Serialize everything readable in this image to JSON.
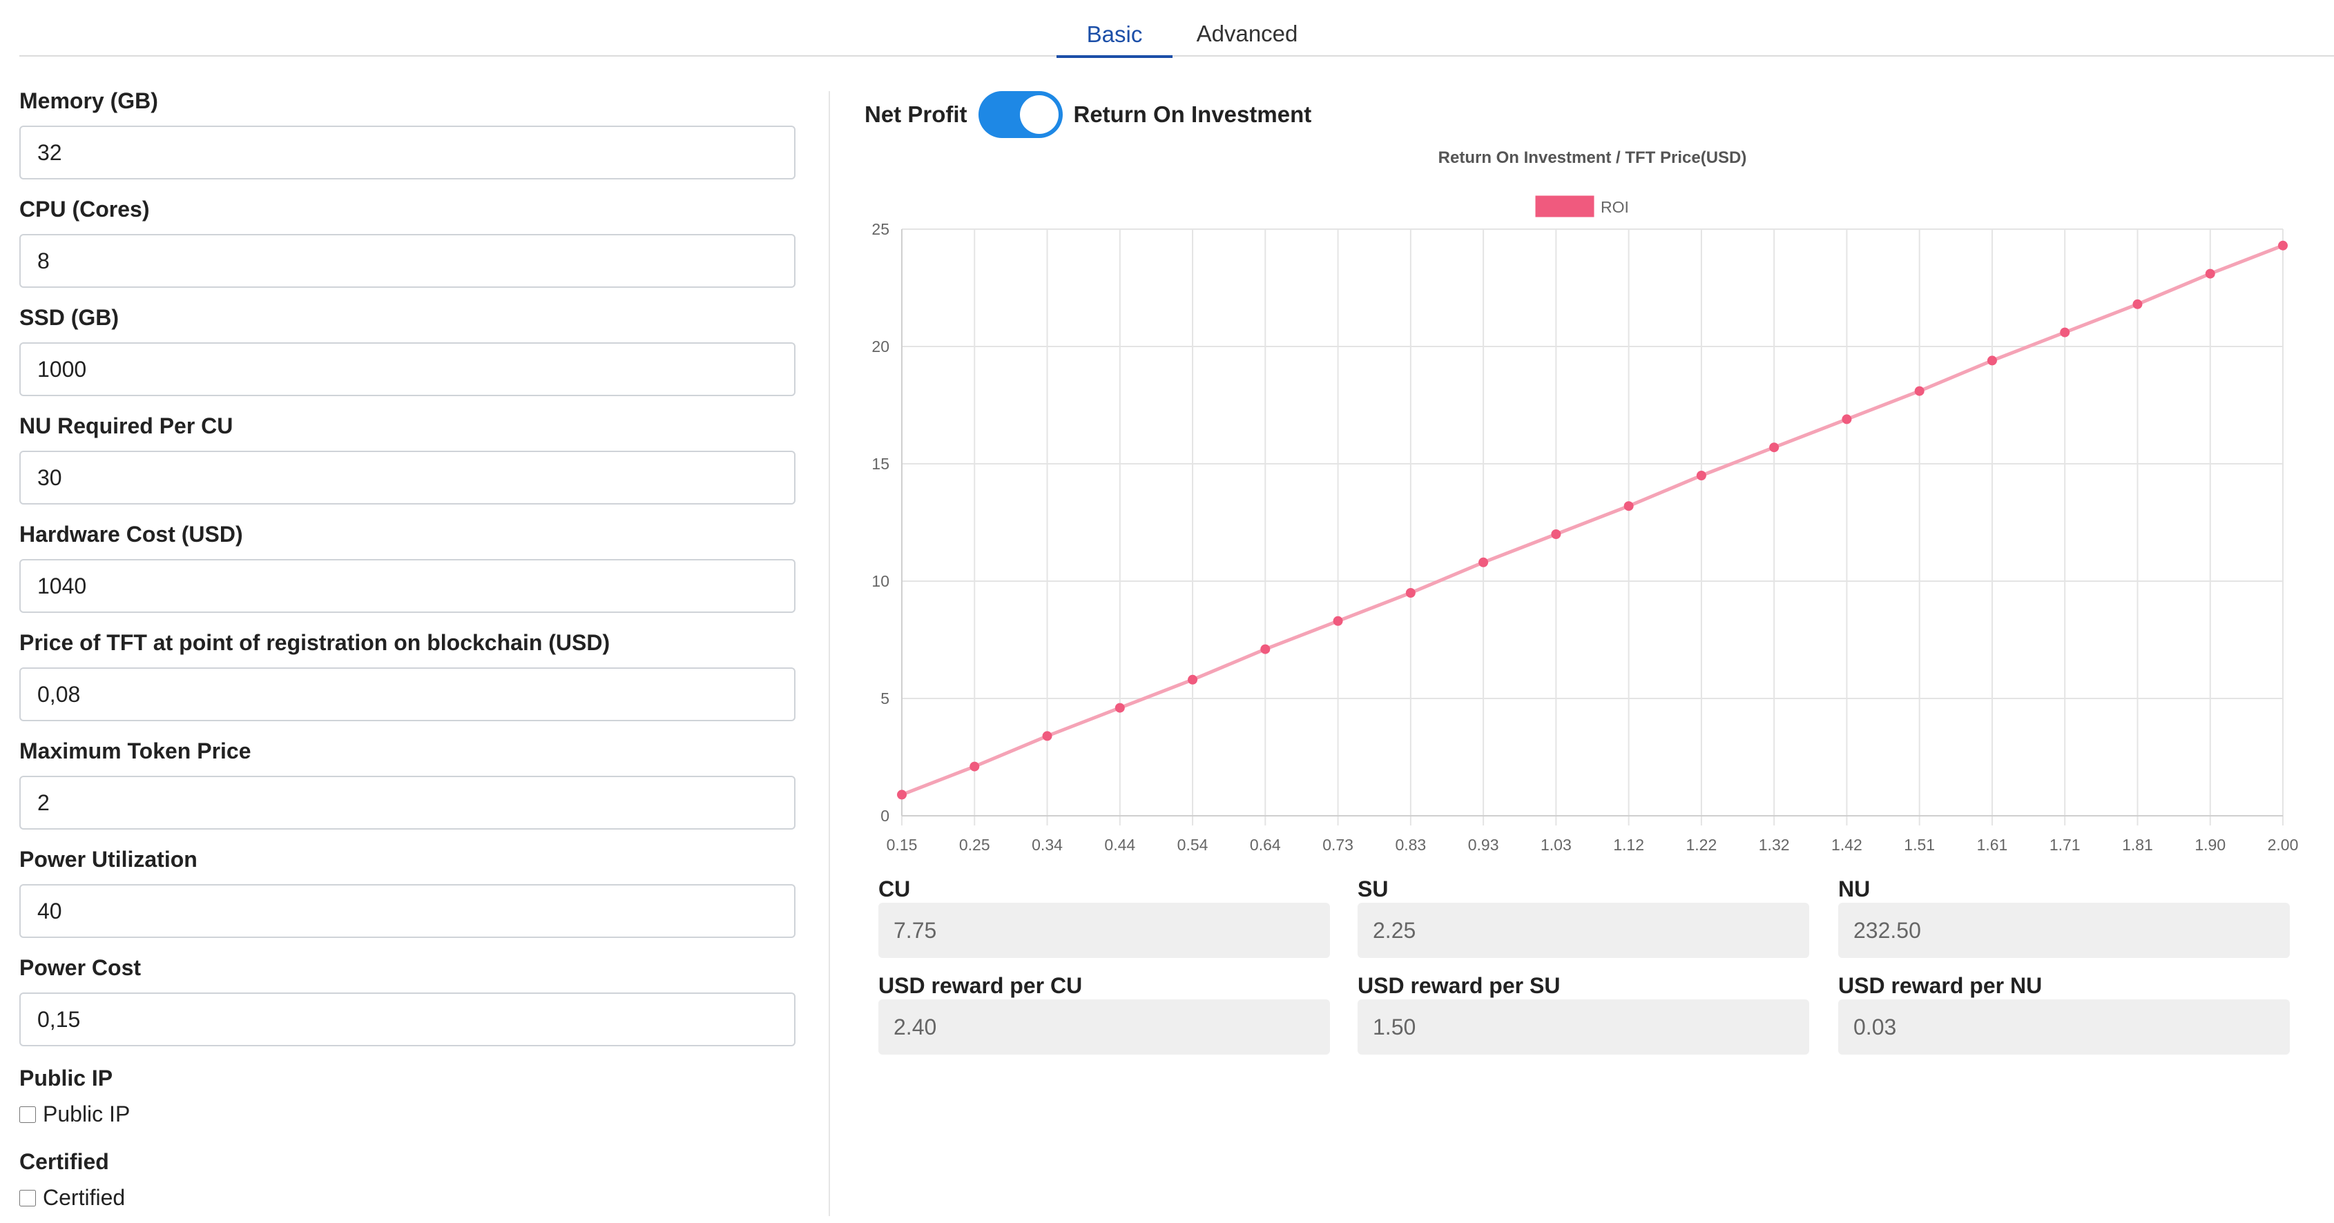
{
  "tabs": [
    {
      "label": "Basic",
      "active": true
    },
    {
      "label": "Advanced",
      "active": false
    }
  ],
  "form": {
    "fields": [
      {
        "label": "Memory (GB)",
        "value": "32"
      },
      {
        "label": "CPU (Cores)",
        "value": "8"
      },
      {
        "label": "SSD (GB)",
        "value": "1000"
      },
      {
        "label": "NU Required Per CU",
        "value": "30"
      },
      {
        "label": "Hardware Cost (USD)",
        "value": "1040"
      },
      {
        "label": "Price of TFT at point of registration on blockchain (USD)",
        "value": "0,08"
      },
      {
        "label": "Maximum Token Price",
        "value": "2"
      },
      {
        "label": "Power Utilization",
        "value": "40"
      },
      {
        "label": "Power Cost",
        "value": "0,15"
      }
    ],
    "public_ip": {
      "heading": "Public IP",
      "checkbox_label": "Public IP",
      "checked": false
    },
    "certified": {
      "heading": "Certified",
      "checkbox_label": "Certified",
      "checked": false
    }
  },
  "toggle": {
    "left_label": "Net Profit",
    "right_label": "Return On Investment",
    "on": true
  },
  "chart_data": {
    "type": "line",
    "title": "Return On Investment / TFT Price(USD)",
    "xlabel": "",
    "ylabel": "",
    "legend": "top",
    "grid": true,
    "ylim": [
      0,
      25
    ],
    "yticks": [
      0,
      5,
      10,
      15,
      20,
      25
    ],
    "categories": [
      "0.15",
      "0.25",
      "0.34",
      "0.44",
      "0.54",
      "0.64",
      "0.73",
      "0.83",
      "0.93",
      "1.03",
      "1.12",
      "1.22",
      "1.32",
      "1.42",
      "1.51",
      "1.61",
      "1.71",
      "1.81",
      "1.90",
      "2.00"
    ],
    "series": [
      {
        "name": "ROI",
        "color": "#f05a7e",
        "values": [
          0.9,
          2.1,
          3.4,
          4.6,
          5.8,
          7.1,
          8.3,
          9.5,
          10.8,
          12.0,
          13.2,
          14.5,
          15.7,
          16.9,
          18.1,
          19.4,
          20.6,
          21.8,
          23.1,
          24.3
        ]
      }
    ]
  },
  "metrics": [
    {
      "label": "CU",
      "value": "7.75"
    },
    {
      "label": "SU",
      "value": "2.25"
    },
    {
      "label": "NU",
      "value": "232.50"
    },
    {
      "label": "USD reward per CU",
      "value": "2.40"
    },
    {
      "label": "USD reward per SU",
      "value": "1.50"
    },
    {
      "label": "USD reward per NU",
      "value": "0.03"
    }
  ]
}
